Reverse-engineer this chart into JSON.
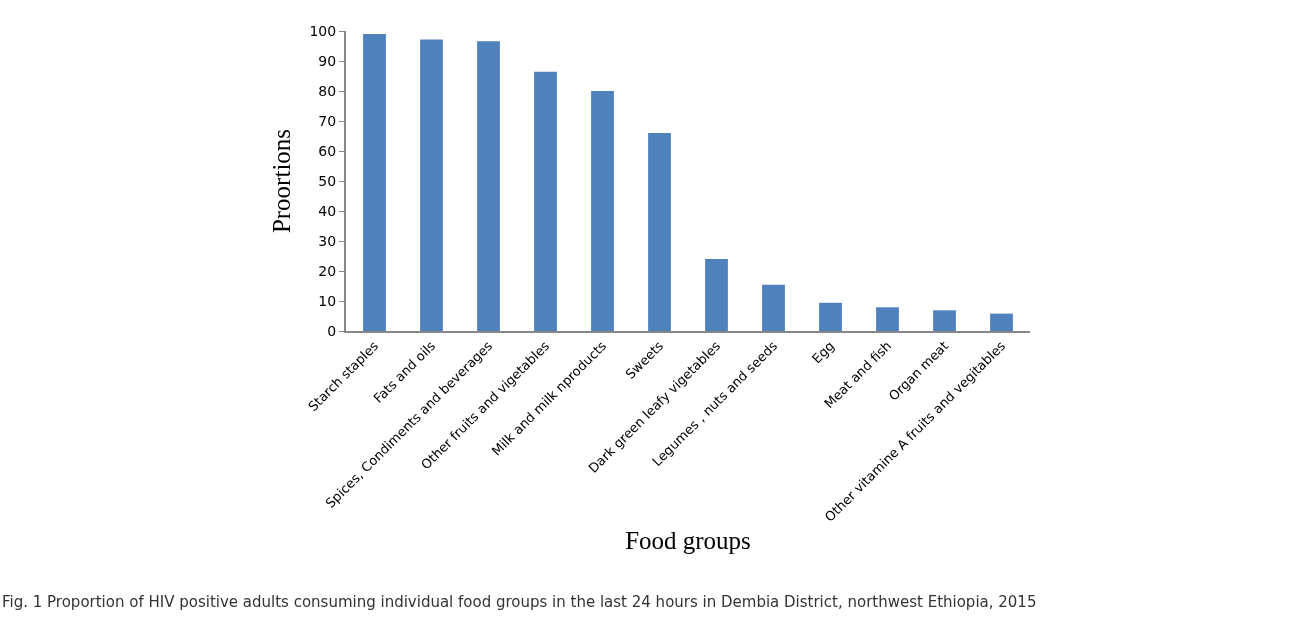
{
  "chart_data": {
    "type": "bar",
    "categories": [
      "Starch staples",
      "Fats and oils",
      "Spices, Condiments and beverages",
      "Other fruits and vigetables",
      "Milk and milk nproducts",
      "Sweets",
      "Dark green leafy vigetables",
      "Legumes , nuts and seeds",
      "Egg",
      "Meat and fish",
      "Organ meat",
      "Other vitamine A fruits and vegitables"
    ],
    "values": [
      99,
      97.2,
      96.6,
      86.4,
      80,
      66,
      24,
      15.4,
      9.4,
      7.9,
      6.9,
      5.8
    ],
    "color": "#4f81bd",
    "xlabel": "Food groups",
    "ylabel": "Proortions",
    "ylim": [
      0,
      100
    ],
    "yticks": [
      0,
      10,
      20,
      30,
      40,
      50,
      60,
      70,
      80,
      90,
      100
    ],
    "grid": false,
    "legend": false,
    "annotations": [
      "Fig. 1 Proportion of HIV positive adults consuming individual food groups in the last 24 hours in Dembia District, northwest Ethiopia, 2015"
    ]
  }
}
